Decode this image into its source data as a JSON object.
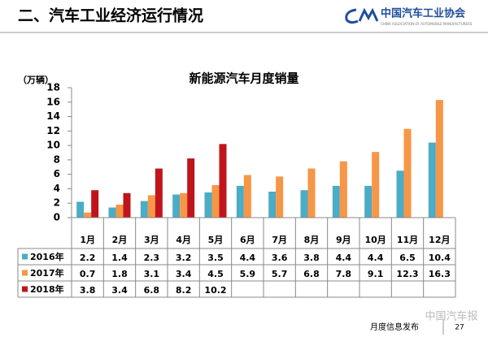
{
  "header": {
    "title": "二、汽车工业经济运行情况",
    "logo_text": "中国汽车工业协会",
    "logo_subtext": "CHINA ASSOCIATION OF AUTOMOBILE MANUFACTURERS"
  },
  "chart_data": {
    "type": "bar",
    "title": "新能源汽车月度销量",
    "y_label": "（万辆）",
    "categories": [
      "1月",
      "2月",
      "3月",
      "4月",
      "5月",
      "6月",
      "7月",
      "8月",
      "9月",
      "10月",
      "11月",
      "12月"
    ],
    "series": [
      {
        "name": "2016年",
        "color": "#4bacc6",
        "values": [
          2.2,
          1.4,
          2.3,
          3.2,
          3.5,
          4.4,
          3.6,
          3.8,
          4.4,
          4.4,
          6.5,
          10.4
        ]
      },
      {
        "name": "2017年",
        "color": "#f79646",
        "values": [
          0.7,
          1.8,
          3.1,
          3.4,
          4.5,
          5.9,
          5.7,
          6.8,
          7.8,
          9.1,
          12.3,
          16.3
        ]
      },
      {
        "name": "2018年",
        "color": "#c0141c",
        "values": [
          3.8,
          3.4,
          6.8,
          8.2,
          10.2,
          null,
          null,
          null,
          null,
          null,
          null,
          null
        ]
      }
    ],
    "ylim": [
      0,
      18
    ],
    "yticks": [
      0,
      2,
      4,
      6,
      8,
      10,
      12,
      14,
      16,
      18
    ]
  },
  "footer": {
    "label": "月度信息发布",
    "page": "27",
    "watermark": "中国汽车报"
  }
}
